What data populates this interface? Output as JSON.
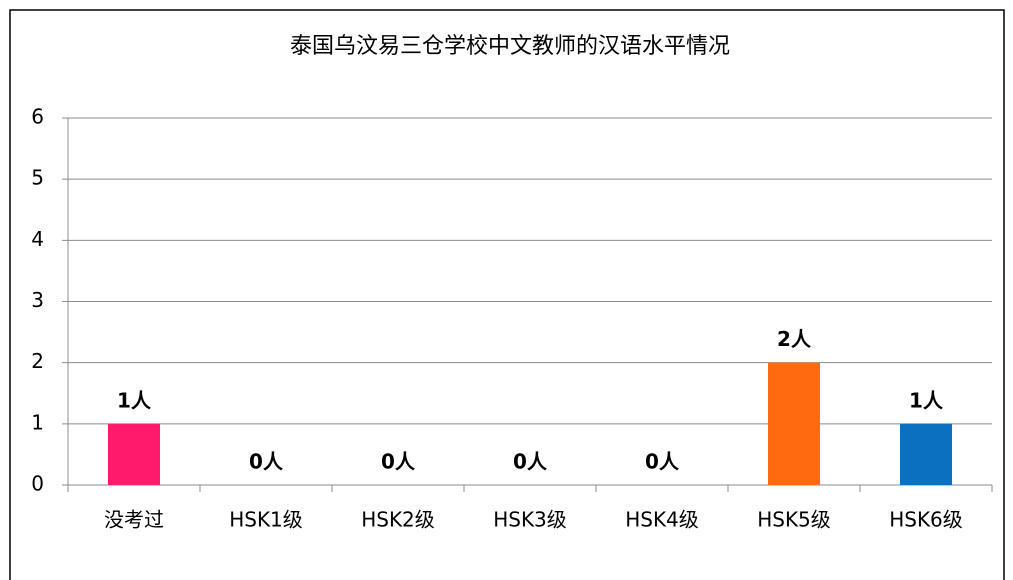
{
  "chart_data": {
    "type": "bar",
    "title": "泰国乌汶易三仓学校中文教师的汉语水平情况",
    "categories": [
      "没考过",
      "HSK1级",
      "HSK2级",
      "HSK3级",
      "HSK4级",
      "HSK5级",
      "HSK6级"
    ],
    "values": [
      1,
      0,
      0,
      0,
      0,
      2,
      1
    ],
    "value_labels": [
      "1人",
      "0人",
      "0人",
      "0人",
      "0人",
      "2人",
      "1人"
    ],
    "colors": [
      "#ff1a6c",
      null,
      null,
      null,
      null,
      "#ff6a10",
      "#0b70c0"
    ],
    "ylim": [
      0,
      6
    ],
    "yticks": [
      0,
      1,
      2,
      3,
      4,
      5,
      6
    ],
    "grid": true
  }
}
